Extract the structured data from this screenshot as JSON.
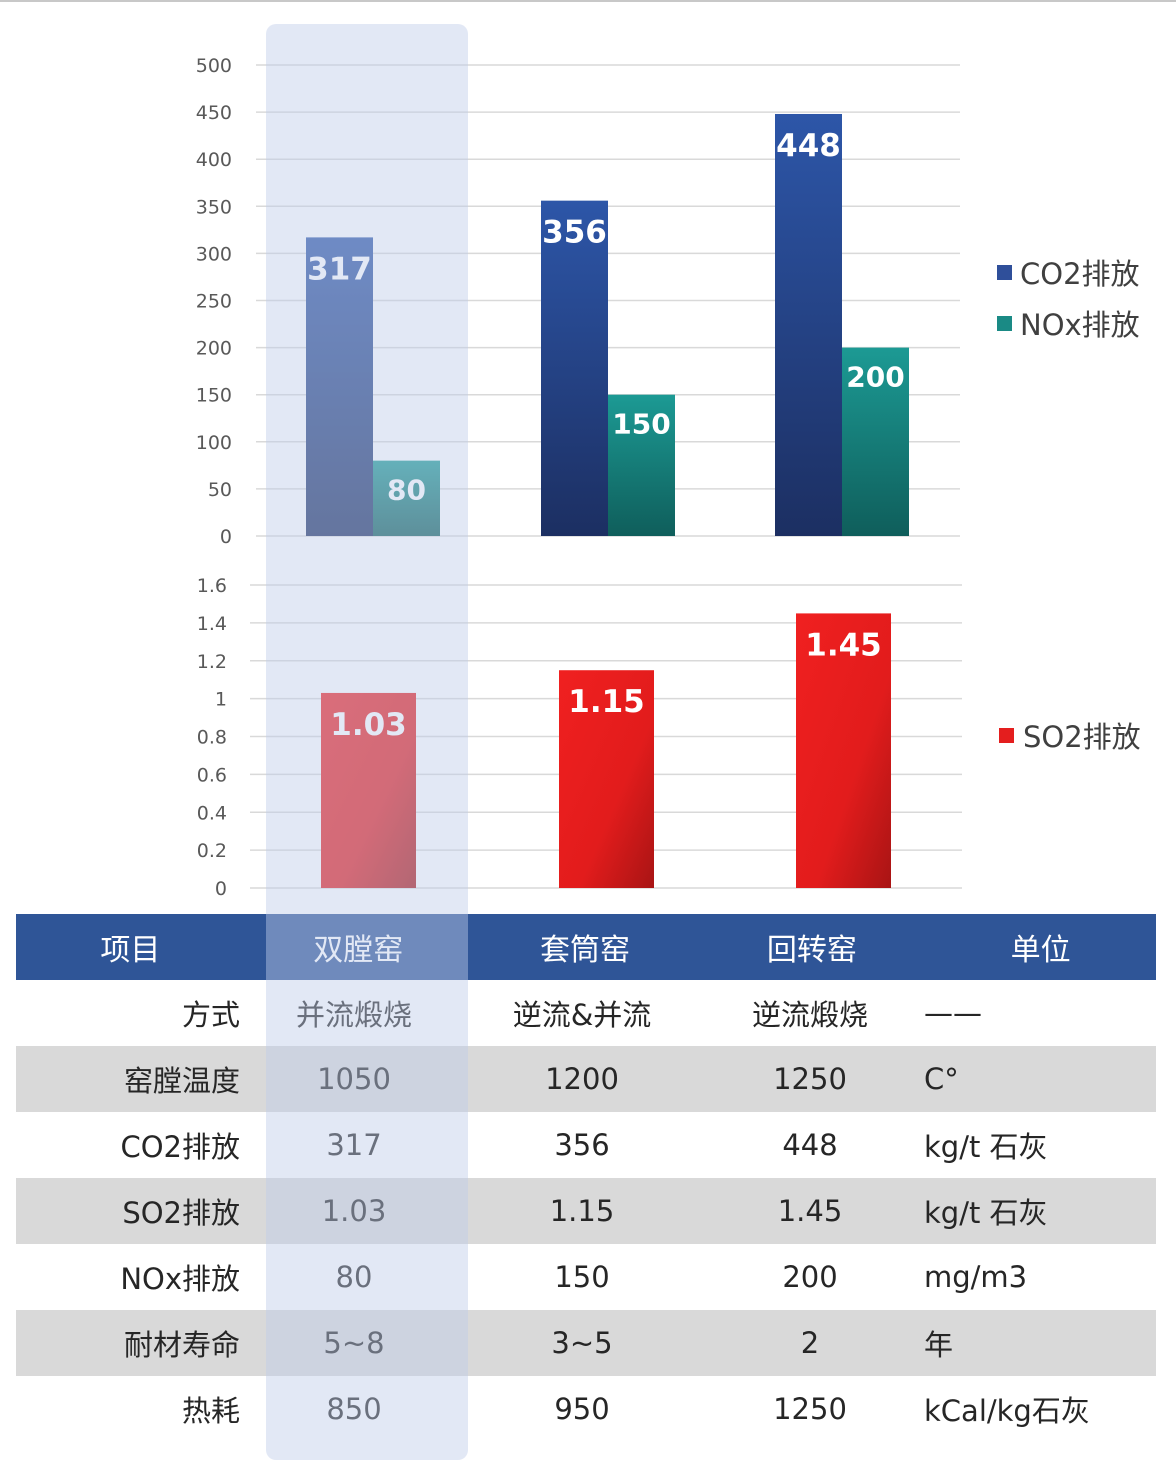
{
  "chart_data": [
    {
      "type": "bar",
      "categories": [
        "双膛窑",
        "套筒窑",
        "回转窑"
      ],
      "series": [
        {
          "name": "CO2排放",
          "values": [
            317,
            356,
            448
          ],
          "color": "#2f4f9a"
        },
        {
          "name": "NOx排放",
          "values": [
            80,
            150,
            200
          ],
          "color": "#1a8a85"
        }
      ],
      "ylim": [
        0,
        500
      ],
      "yticks": [
        0,
        50,
        100,
        150,
        200,
        250,
        300,
        350,
        400,
        450,
        500
      ],
      "grid": true,
      "legend": "right"
    },
    {
      "type": "bar",
      "categories": [
        "双膛窑",
        "套筒窑",
        "回转窑"
      ],
      "series": [
        {
          "name": "SO2排放",
          "values": [
            1.03,
            1.15,
            1.45
          ],
          "color": "#e41e1e"
        }
      ],
      "ylim": [
        0,
        1.6
      ],
      "yticks": [
        "0",
        "0.2",
        "0.4",
        "0.6",
        "0.8",
        "1",
        "1.2",
        "1.4",
        "1.6"
      ],
      "grid": true,
      "legend": "right"
    }
  ],
  "table": {
    "header": [
      "项目",
      "双膛窑",
      "套筒窑",
      "回转窑",
      "单位"
    ],
    "rows": [
      [
        "方式",
        "并流煅烧",
        "逆流&并流",
        "逆流煅烧",
        "——"
      ],
      [
        "窑膛温度",
        "1050",
        "1200",
        "1250",
        "C°"
      ],
      [
        "CO2排放",
        "317",
        "356",
        "448",
        "kg/t 石灰"
      ],
      [
        "SO2排放",
        "1.03",
        "1.15",
        "1.45",
        "kg/t 石灰"
      ],
      [
        "NOx排放",
        "80",
        "150",
        "200",
        "mg/m3"
      ],
      [
        "耐材寿命",
        "5~8",
        "3~5",
        "2",
        "年"
      ],
      [
        "热耗",
        "850",
        "950",
        "1250",
        "kCal/kg石灰"
      ]
    ]
  }
}
